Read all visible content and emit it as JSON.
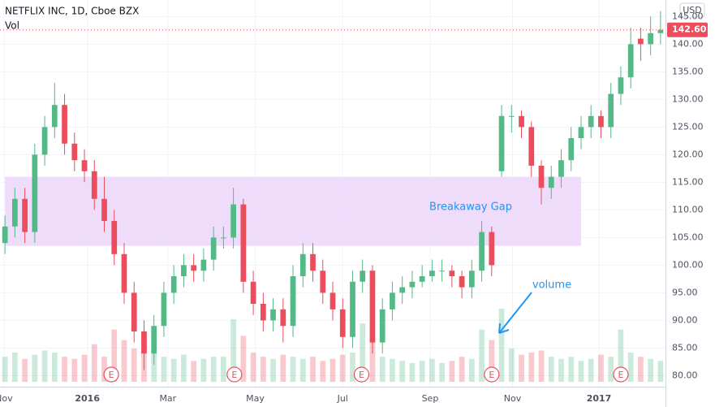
{
  "chart_data": {
    "type": "candlestick",
    "title": "NETFLIX INC, 1D, Cboe BZX",
    "subtitle": "Vol",
    "currency": "USD",
    "ylim": [
      78,
      148
    ],
    "yticks": [
      {
        "value": 80,
        "label": "80.00"
      },
      {
        "value": 85,
        "label": "85.00"
      },
      {
        "value": 90,
        "label": "90.00"
      },
      {
        "value": 95,
        "label": "95.00"
      },
      {
        "value": 100,
        "label": "100.00"
      },
      {
        "value": 105,
        "label": "105.00"
      },
      {
        "value": 110,
        "label": "110.00"
      },
      {
        "value": 115,
        "label": "115.00"
      },
      {
        "value": 120,
        "label": "120.00"
      },
      {
        "value": 125,
        "label": "125.00"
      },
      {
        "value": 130,
        "label": "130.00"
      },
      {
        "value": 135,
        "label": "135.00"
      },
      {
        "value": 140,
        "label": "140.00"
      },
      {
        "value": 145,
        "label": "145.00"
      }
    ],
    "xlim": [
      0,
      67
    ],
    "xticks": [
      {
        "value": 0.4,
        "label": "Nov"
      },
      {
        "value": 8.8,
        "label": "2016"
      },
      {
        "value": 16.9,
        "label": "Mar"
      },
      {
        "value": 25.7,
        "label": "May"
      },
      {
        "value": 34.5,
        "label": "Jul"
      },
      {
        "value": 43.3,
        "label": "Sep"
      },
      {
        "value": 51.6,
        "label": "Nov"
      },
      {
        "value": 60.3,
        "label": "2017"
      }
    ],
    "up_color": "#53b987",
    "down_color": "#eb4d5c",
    "ohlc": [
      [
        104,
        109,
        102,
        107
      ],
      [
        107,
        114,
        105,
        112
      ],
      [
        112,
        114,
        104,
        106
      ],
      [
        106,
        122,
        104,
        120
      ],
      [
        120,
        127,
        118,
        125
      ],
      [
        125,
        133,
        123,
        129
      ],
      [
        129,
        131,
        120,
        122
      ],
      [
        122,
        124,
        117,
        119
      ],
      [
        119,
        121,
        115,
        117
      ],
      [
        117,
        119,
        110,
        112
      ],
      [
        112,
        116,
        106,
        108
      ],
      [
        108,
        110,
        100,
        102
      ],
      [
        102,
        104,
        93,
        95
      ],
      [
        95,
        97,
        86,
        88
      ],
      [
        88,
        90,
        81,
        84
      ],
      [
        84,
        91,
        82,
        89
      ],
      [
        89,
        97,
        87,
        95
      ],
      [
        95,
        100,
        93,
        98
      ],
      [
        98,
        102,
        96,
        100
      ],
      [
        100,
        102,
        97,
        99
      ],
      [
        99,
        103,
        97,
        101
      ],
      [
        101,
        107,
        99,
        105
      ],
      [
        105,
        107,
        103,
        105
      ],
      [
        105,
        114,
        103,
        111
      ],
      [
        111,
        112,
        95,
        97
      ],
      [
        97,
        99,
        91,
        93
      ],
      [
        93,
        95,
        88,
        90
      ],
      [
        90,
        94,
        88,
        92
      ],
      [
        92,
        94,
        86,
        89
      ],
      [
        89,
        100,
        87,
        98
      ],
      [
        98,
        104,
        96,
        102
      ],
      [
        102,
        104,
        97,
        99
      ],
      [
        99,
        101,
        93,
        95
      ],
      [
        95,
        97,
        90,
        92
      ],
      [
        92,
        94,
        85,
        87
      ],
      [
        87,
        99,
        85,
        97
      ],
      [
        97,
        101,
        95,
        99
      ],
      [
        99,
        100,
        84,
        86
      ],
      [
        86,
        94,
        84,
        92
      ],
      [
        92,
        97,
        90,
        95
      ],
      [
        95,
        98,
        93,
        96
      ],
      [
        96,
        99,
        94,
        97
      ],
      [
        97,
        100,
        96,
        98
      ],
      [
        98,
        101,
        97,
        99
      ],
      [
        99,
        101,
        97,
        99
      ],
      [
        99,
        100,
        96,
        98
      ],
      [
        98,
        99,
        94,
        96
      ],
      [
        96,
        101,
        94,
        99
      ],
      [
        99,
        108,
        97,
        106
      ],
      [
        106,
        107,
        98,
        100
      ],
      [
        117,
        129,
        116,
        127
      ],
      [
        127,
        129,
        124,
        127
      ],
      [
        127,
        128,
        123,
        125
      ],
      [
        125,
        126,
        116,
        118
      ],
      [
        118,
        119,
        111,
        114
      ],
      [
        114,
        118,
        112,
        116
      ],
      [
        116,
        121,
        114,
        119
      ],
      [
        119,
        125,
        117,
        123
      ],
      [
        123,
        127,
        121,
        125
      ],
      [
        125,
        129,
        123,
        127
      ],
      [
        127,
        128,
        123,
        125
      ],
      [
        125,
        133,
        123,
        131
      ],
      [
        131,
        136,
        129,
        134
      ],
      [
        134,
        143,
        132,
        140
      ],
      [
        141,
        143,
        137,
        140
      ],
      [
        140,
        145,
        138,
        142
      ],
      [
        142,
        146,
        140,
        142.6
      ]
    ],
    "volume": [
      12,
      14,
      11,
      13,
      15,
      14,
      12,
      11,
      13,
      18,
      12,
      25,
      20,
      16,
      22,
      14,
      12,
      11,
      13,
      10,
      11,
      12,
      12,
      30,
      22,
      14,
      12,
      11,
      13,
      12,
      11,
      12,
      10,
      11,
      13,
      14,
      28,
      20,
      12,
      11,
      10,
      9,
      10,
      11,
      9,
      10,
      12,
      11,
      25,
      20,
      35,
      16,
      13,
      14,
      15,
      12,
      11,
      12,
      10,
      11,
      13,
      12,
      25,
      14,
      12,
      11,
      10
    ],
    "last_price": {
      "value": 142.6,
      "label": "142.60"
    },
    "zone": {
      "low": 103.5,
      "high": 116,
      "x": [
        0.5,
        58.5
      ],
      "color": "#ecd6fa"
    },
    "annotations": [
      {
        "text": "Breakaway Gap"
      },
      {
        "text": "volume"
      }
    ],
    "earnings": {
      "label": "E",
      "x": [
        11.2,
        23.6,
        36.4,
        49.5,
        62.5
      ]
    }
  }
}
